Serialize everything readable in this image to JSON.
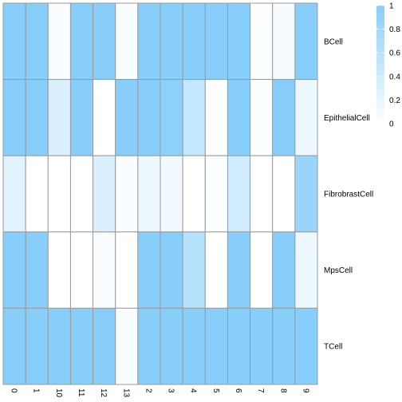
{
  "chart_data": {
    "type": "heatmap",
    "columns": [
      "0",
      "1",
      "10",
      "11",
      "12",
      "13",
      "2",
      "3",
      "4",
      "5",
      "6",
      "7",
      "8",
      "9"
    ],
    "rows": [
      "BCell",
      "EpithelialCell",
      "FibrobrastCell",
      "MpsCell",
      "TCell"
    ],
    "values": [
      [
        1.0,
        1.0,
        0.05,
        1.0,
        1.0,
        0.04,
        1.0,
        1.0,
        1.0,
        1.0,
        1.0,
        0.02,
        0.08,
        1.0
      ],
      [
        1.0,
        1.0,
        0.3,
        1.0,
        0.0,
        1.0,
        1.0,
        0.95,
        0.5,
        0.0,
        1.0,
        0.02,
        1.0,
        0.15
      ],
      [
        0.25,
        0.0,
        0.0,
        0.0,
        0.3,
        0.05,
        0.15,
        0.1,
        0.0,
        0.03,
        0.4,
        0.0,
        0.0,
        0.85
      ],
      [
        1.0,
        1.0,
        0.0,
        0.0,
        0.05,
        0.0,
        1.0,
        1.0,
        0.6,
        0.0,
        1.0,
        0.0,
        1.0,
        0.15
      ],
      [
        1.0,
        1.0,
        1.0,
        1.0,
        1.0,
        0.05,
        1.0,
        1.0,
        1.0,
        1.0,
        1.0,
        1.0,
        1.0,
        1.0
      ]
    ],
    "color_low": "#ffffff",
    "color_high": "#87cefa",
    "cell_border_color": "#9a9a9a",
    "range": [
      0,
      1
    ],
    "legend": {
      "position": "top-right",
      "ticks": [
        "0",
        "0.2",
        "0.4",
        "0.6",
        "0.8",
        "1"
      ]
    },
    "title": "",
    "xlabel": "",
    "ylabel": ""
  }
}
